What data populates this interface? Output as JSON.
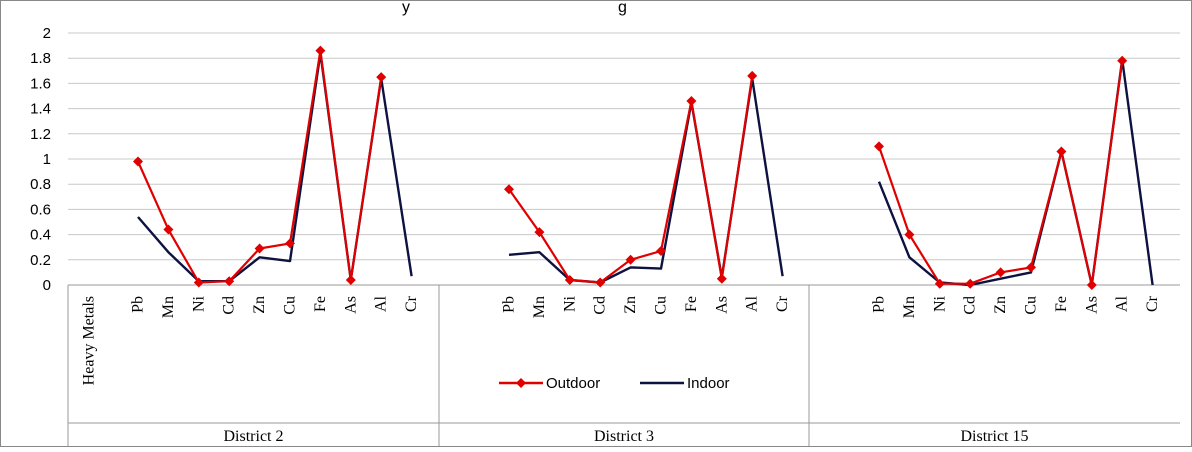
{
  "chart_data": {
    "type": "line",
    "title_fragment": "y",
    "title_fragment_2": "g",
    "x_header": "Heavy Metals",
    "groups": [
      "District 2",
      "District 3",
      "District 15"
    ],
    "categories": [
      "Pb",
      "Mn",
      "Ni",
      "Cd",
      "Zn",
      "Cu",
      "Fe",
      "As",
      "Al",
      "Cr"
    ],
    "ylim": [
      0,
      2
    ],
    "yticks": [
      "0",
      "0.2",
      "0.4",
      "0.6",
      "0.8",
      "1",
      "1.2",
      "1.4",
      "1.6",
      "1.8",
      "2"
    ],
    "grid": true,
    "legend_position": "bottom-center",
    "series": [
      {
        "name": "Outdoor",
        "color": "#e00000",
        "marker": "diamond",
        "values": [
          [
            0.98,
            0.44,
            0.02,
            0.03,
            0.29,
            0.33,
            1.86,
            0.04,
            1.65,
            null
          ],
          [
            0.76,
            0.42,
            0.04,
            0.02,
            0.2,
            0.27,
            1.46,
            0.05,
            1.66,
            null
          ],
          [
            1.1,
            0.4,
            0.01,
            0.01,
            0.1,
            0.14,
            1.06,
            0.0,
            1.78,
            null
          ]
        ]
      },
      {
        "name": "Indoor",
        "color": "#0d1240",
        "marker": "none",
        "values": [
          [
            0.54,
            0.26,
            0.03,
            0.03,
            0.22,
            0.19,
            1.84,
            0.04,
            1.64,
            0.07
          ],
          [
            0.24,
            0.26,
            0.04,
            0.02,
            0.14,
            0.13,
            1.45,
            0.06,
            1.64,
            0.07
          ],
          [
            0.82,
            0.22,
            0.02,
            0.0,
            0.05,
            0.1,
            1.06,
            0.0,
            1.79,
            0.0
          ]
        ]
      }
    ]
  }
}
